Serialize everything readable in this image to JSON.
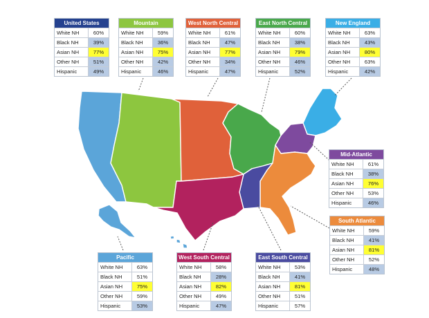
{
  "colors": {
    "Mountain": "#8dc63f",
    "West North Central": "#e0613a",
    "East North Central": "#49a84b",
    "New England": "#3aaee6",
    "Mid-Atlantic": "#7e4a9e",
    "South Atlantic": "#ec8b3c",
    "East South Central": "#4a4ba0",
    "West South Central": "#b2225e",
    "Pacific": "#5ba5d9",
    "United States": "#24418f",
    "highlight": "#ffff33",
    "blue_cell": "#b8cbe4"
  },
  "cards": [
    {
      "id": "us",
      "title": "United States",
      "rows": [
        {
          "label": "White NH",
          "value": "60%",
          "fill": "w"
        },
        {
          "label": "Black NH",
          "value": "39%",
          "fill": "b"
        },
        {
          "label": "Asian NH",
          "value": "77%",
          "fill": "y"
        },
        {
          "label": "Other NH",
          "value": "51%",
          "fill": "b"
        },
        {
          "label": "Hispanic",
          "value": "49%",
          "fill": "b"
        }
      ]
    },
    {
      "id": "mountain",
      "title": "Mountain",
      "rows": [
        {
          "label": "White NH",
          "value": "59%",
          "fill": "w"
        },
        {
          "label": "Black NH",
          "value": "36%",
          "fill": "b"
        },
        {
          "label": "Asian NH",
          "value": "75%",
          "fill": "y"
        },
        {
          "label": "Other NH",
          "value": "42%",
          "fill": "b"
        },
        {
          "label": "Hispanic",
          "value": "46%",
          "fill": "b"
        }
      ]
    },
    {
      "id": "wnc",
      "title": "West North Central",
      "rows": [
        {
          "label": "White NH",
          "value": "61%",
          "fill": "w"
        },
        {
          "label": "Black NH",
          "value": "47%",
          "fill": "b"
        },
        {
          "label": "Asian NH",
          "value": "77%",
          "fill": "y"
        },
        {
          "label": "Other NH",
          "value": "34%",
          "fill": "b"
        },
        {
          "label": "Hispanic",
          "value": "47%",
          "fill": "b"
        }
      ]
    },
    {
      "id": "enc",
      "title": "East North Central",
      "rows": [
        {
          "label": "White NH",
          "value": "60%",
          "fill": "w"
        },
        {
          "label": "Black NH",
          "value": "38%",
          "fill": "b"
        },
        {
          "label": "Asian NH",
          "value": "79%",
          "fill": "y"
        },
        {
          "label": "Other NH",
          "value": "46%",
          "fill": "b"
        },
        {
          "label": "Hispanic",
          "value": "52%",
          "fill": "b"
        }
      ]
    },
    {
      "id": "ne",
      "title": "New England",
      "rows": [
        {
          "label": "White NH",
          "value": "63%",
          "fill": "w"
        },
        {
          "label": "Black NH",
          "value": "43%",
          "fill": "b"
        },
        {
          "label": "Asian NH",
          "value": "80%",
          "fill": "y"
        },
        {
          "label": "Other NH",
          "value": "63%",
          "fill": "w"
        },
        {
          "label": "Hispanic",
          "value": "42%",
          "fill": "b"
        }
      ]
    },
    {
      "id": "ma",
      "title": "Mid-Atlantic",
      "rows": [
        {
          "label": "White NH",
          "value": "61%",
          "fill": "w"
        },
        {
          "label": "Black NH",
          "value": "38%",
          "fill": "b"
        },
        {
          "label": "Asian NH",
          "value": "76%",
          "fill": "y"
        },
        {
          "label": "Other NH",
          "value": "53%",
          "fill": "w"
        },
        {
          "label": "Hispanic",
          "value": "46%",
          "fill": "b"
        }
      ]
    },
    {
      "id": "sa",
      "title": "South Atlantic",
      "rows": [
        {
          "label": "White NH",
          "value": "59%",
          "fill": "w"
        },
        {
          "label": "Black NH",
          "value": "41%",
          "fill": "b"
        },
        {
          "label": "Asian NH",
          "value": "81%",
          "fill": "y"
        },
        {
          "label": "Other NH",
          "value": "52%",
          "fill": "w"
        },
        {
          "label": "Hispanic",
          "value": "48%",
          "fill": "b"
        }
      ]
    },
    {
      "id": "pac",
      "title": "Pacific",
      "rows": [
        {
          "label": "White NH",
          "value": "63%",
          "fill": "w"
        },
        {
          "label": "Black NH",
          "value": "51%",
          "fill": "w"
        },
        {
          "label": "Asian NH",
          "value": "75%",
          "fill": "y"
        },
        {
          "label": "Other NH",
          "value": "59%",
          "fill": "w"
        },
        {
          "label": "Hispanic",
          "value": "53%",
          "fill": "b"
        }
      ]
    },
    {
      "id": "wsc",
      "title": "West South Central",
      "rows": [
        {
          "label": "White NH",
          "value": "58%",
          "fill": "w"
        },
        {
          "label": "Black NH",
          "value": "28%",
          "fill": "b"
        },
        {
          "label": "Asian NH",
          "value": "82%",
          "fill": "y"
        },
        {
          "label": "Other NH",
          "value": "49%",
          "fill": "w"
        },
        {
          "label": "Hispanic",
          "value": "47%",
          "fill": "b"
        }
      ]
    },
    {
      "id": "esc",
      "title": "East South Central",
      "rows": [
        {
          "label": "White NH",
          "value": "53%",
          "fill": "w"
        },
        {
          "label": "Black NH",
          "value": "41%",
          "fill": "b"
        },
        {
          "label": "Asian NH",
          "value": "81%",
          "fill": "y"
        },
        {
          "label": "Other NH",
          "value": "51%",
          "fill": "w"
        },
        {
          "label": "Hispanic",
          "value": "57%",
          "fill": "w"
        }
      ]
    }
  ]
}
